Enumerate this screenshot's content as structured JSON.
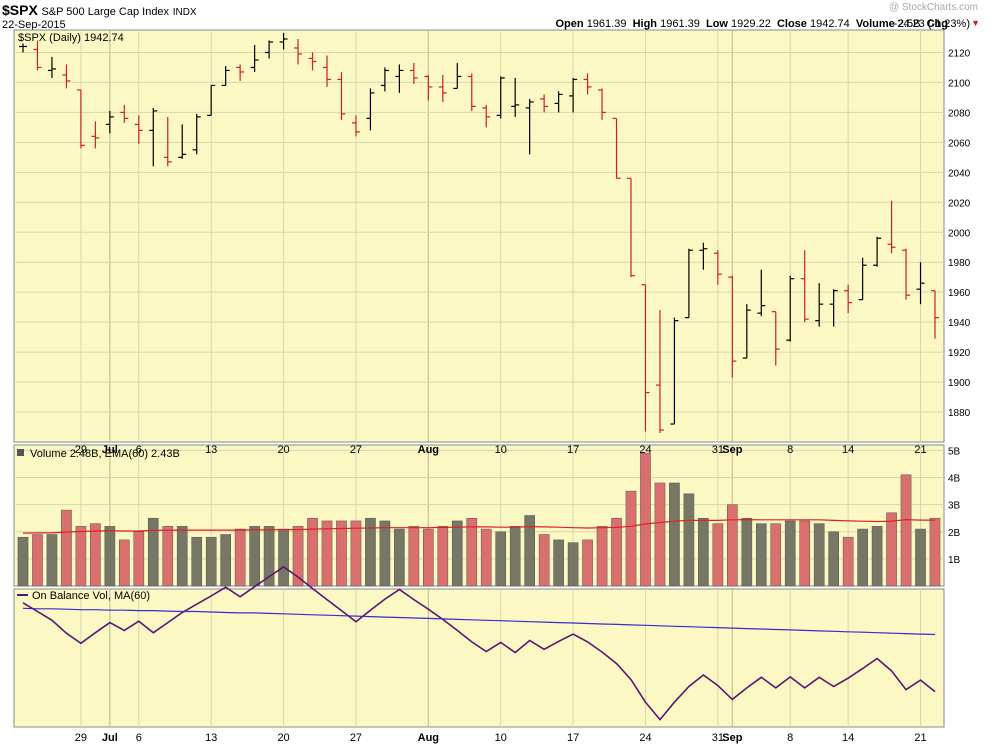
{
  "header": {
    "symbol": "$SPX",
    "name": "S&P 500 Large Cap Index",
    "exchange": "INDX",
    "date": "22-Sep-2015",
    "watermark": "@ StockCharts.com",
    "quote": {
      "open_label": "Open",
      "open": "1961.39",
      "high_label": "High",
      "high": "1961.39",
      "low_label": "Low",
      "low": "1929.22",
      "close_label": "Close",
      "close": "1942.74",
      "volume_label": "Volume",
      "volume": "2.5B",
      "chg_label": "Chg",
      "chg": "-24.23 (-1.23%)",
      "chg_arrow": "▼"
    }
  },
  "colors": {
    "panel_bg": "#fbf8c4",
    "up": "#000000",
    "down": "#cc2222",
    "vol_up": "#777766",
    "vol_down": "#d9706e",
    "ema": "#dd2222",
    "obv": "#5b1470",
    "ma": "#3a2ad0",
    "grid": "#d8d6b0",
    "watermark": "#b0b0b0"
  },
  "chart_data": [
    {
      "type": "ohlc",
      "title": "$SPX (Daily) 1942.74",
      "ylim": [
        1860,
        2135
      ],
      "yticks": [
        1880,
        1900,
        1920,
        1940,
        1960,
        1980,
        2000,
        2020,
        2040,
        2060,
        2080,
        2100,
        2120
      ],
      "xtick_labels": [
        {
          "label": "29",
          "index": 4,
          "major": false
        },
        {
          "label": "Jul",
          "index": 6,
          "major": true
        },
        {
          "label": "6",
          "index": 8,
          "major": false
        },
        {
          "label": "13",
          "index": 13,
          "major": false
        },
        {
          "label": "20",
          "index": 18,
          "major": false
        },
        {
          "label": "27",
          "index": 23,
          "major": false
        },
        {
          "label": "Aug",
          "index": 28,
          "major": true
        },
        {
          "label": "10",
          "index": 33,
          "major": false
        },
        {
          "label": "17",
          "index": 38,
          "major": false
        },
        {
          "label": "24",
          "index": 43,
          "major": false
        },
        {
          "label": "31",
          "index": 48,
          "major": false
        },
        {
          "label": "Sep",
          "index": 49,
          "major": true
        },
        {
          "label": "8",
          "index": 53,
          "major": false
        },
        {
          "label": "14",
          "index": 57,
          "major": false
        },
        {
          "label": "21",
          "index": 62,
          "major": false
        }
      ],
      "bars": [
        {
          "o": 2124,
          "h": 2126,
          "l": 2120,
          "c": 2124
        },
        {
          "o": 2122,
          "h": 2128,
          "l": 2108,
          "c": 2110
        },
        {
          "o": 2108,
          "h": 2117,
          "l": 2103,
          "c": 2109
        },
        {
          "o": 2105,
          "h": 2112,
          "l": 2096,
          "c": 2101
        },
        {
          "o": 2095,
          "h": 2095,
          "l": 2056,
          "c": 2058
        },
        {
          "o": 2064,
          "h": 2074,
          "l": 2056,
          "c": 2063
        },
        {
          "o": 2072,
          "h": 2081,
          "l": 2066,
          "c": 2077
        },
        {
          "o": 2080,
          "h": 2085,
          "l": 2073,
          "c": 2076
        },
        {
          "o": 2072,
          "h": 2078,
          "l": 2059,
          "c": 2068
        },
        {
          "o": 2068,
          "h": 2083,
          "l": 2044,
          "c": 2081
        },
        {
          "o": 2050,
          "h": 2077,
          "l": 2044,
          "c": 2047
        },
        {
          "o": 2050,
          "h": 2072,
          "l": 2049,
          "c": 2052
        },
        {
          "o": 2055,
          "h": 2079,
          "l": 2052,
          "c": 2077
        },
        {
          "o": 2078,
          "h": 2098,
          "l": 2078,
          "c": 2098
        },
        {
          "o": 2098,
          "h": 2111,
          "l": 2098,
          "c": 2108
        },
        {
          "o": 2110,
          "h": 2112,
          "l": 2101,
          "c": 2107
        },
        {
          "o": 2110,
          "h": 2125,
          "l": 2107,
          "c": 2115
        },
        {
          "o": 2120,
          "h": 2128,
          "l": 2116,
          "c": 2127
        },
        {
          "o": 2127,
          "h": 2133,
          "l": 2122,
          "c": 2129
        },
        {
          "o": 2123,
          "h": 2129,
          "l": 2112,
          "c": 2119
        },
        {
          "o": 2116,
          "h": 2120,
          "l": 2108,
          "c": 2114
        },
        {
          "o": 2110,
          "h": 2118,
          "l": 2097,
          "c": 2102
        },
        {
          "o": 2102,
          "h": 2107,
          "l": 2075,
          "c": 2079
        },
        {
          "o": 2073,
          "h": 2078,
          "l": 2064,
          "c": 2067
        },
        {
          "o": 2076,
          "h": 2096,
          "l": 2068,
          "c": 2093
        },
        {
          "o": 2098,
          "h": 2110,
          "l": 2094,
          "c": 2108
        },
        {
          "o": 2104,
          "h": 2112,
          "l": 2093,
          "c": 2108
        },
        {
          "o": 2108,
          "h": 2113,
          "l": 2099,
          "c": 2103
        },
        {
          "o": 2104,
          "h": 2105,
          "l": 2088,
          "c": 2097
        },
        {
          "o": 2097,
          "h": 2105,
          "l": 2087,
          "c": 2093
        },
        {
          "o": 2096,
          "h": 2113,
          "l": 2096,
          "c": 2104
        },
        {
          "o": 2104,
          "h": 2106,
          "l": 2081,
          "c": 2084
        },
        {
          "o": 2083,
          "h": 2085,
          "l": 2070,
          "c": 2077
        },
        {
          "o": 2078,
          "h": 2104,
          "l": 2076,
          "c": 2103
        },
        {
          "o": 2084,
          "h": 2103,
          "l": 2077,
          "c": 2085
        },
        {
          "o": 2083,
          "h": 2089,
          "l": 2052,
          "c": 2087
        },
        {
          "o": 2089,
          "h": 2092,
          "l": 2080,
          "c": 2084
        },
        {
          "o": 2086,
          "h": 2094,
          "l": 2080,
          "c": 2092
        },
        {
          "o": 2091,
          "h": 2103,
          "l": 2080,
          "c": 2102
        },
        {
          "o": 2102,
          "h": 2106,
          "l": 2092,
          "c": 2097
        },
        {
          "o": 2095,
          "h": 2096,
          "l": 2075,
          "c": 2080
        },
        {
          "o": 2076,
          "h": 2076,
          "l": 2036,
          "c": 2036
        },
        {
          "o": 2036,
          "h": 2036,
          "l": 1970,
          "c": 1971
        },
        {
          "o": 1965,
          "h": 1965,
          "l": 1867,
          "c": 1893
        },
        {
          "o": 1898,
          "h": 1948,
          "l": 1866,
          "c": 1868
        },
        {
          "o": 1872,
          "h": 1943,
          "l": 1872,
          "c": 1941
        },
        {
          "o": 1943,
          "h": 1989,
          "l": 1943,
          "c": 1988
        },
        {
          "o": 1988,
          "h": 1993,
          "l": 1975,
          "c": 1989
        },
        {
          "o": 1986,
          "h": 1988,
          "l": 1965,
          "c": 1972
        },
        {
          "o": 1970,
          "h": 1971,
          "l": 1903,
          "c": 1914
        },
        {
          "o": 1916,
          "h": 1952,
          "l": 1916,
          "c": 1948
        },
        {
          "o": 1946,
          "h": 1975,
          "l": 1944,
          "c": 1951
        },
        {
          "o": 1947,
          "h": 1947,
          "l": 1911,
          "c": 1922
        },
        {
          "o": 1928,
          "h": 1971,
          "l": 1927,
          "c": 1969
        },
        {
          "o": 1969,
          "h": 1988,
          "l": 1940,
          "c": 1942
        },
        {
          "o": 1941,
          "h": 1966,
          "l": 1937,
          "c": 1952
        },
        {
          "o": 1952,
          "h": 1962,
          "l": 1937,
          "c": 1961
        },
        {
          "o": 1961,
          "h": 1965,
          "l": 1946,
          "c": 1953
        },
        {
          "o": 1955,
          "h": 1983,
          "l": 1955,
          "c": 1978
        },
        {
          "o": 1978,
          "h": 1997,
          "l": 1977,
          "c": 1996
        },
        {
          "o": 1992,
          "h": 2021,
          "l": 1986,
          "c": 1990
        },
        {
          "o": 1988,
          "h": 1989,
          "l": 1955,
          "c": 1958
        },
        {
          "o": 1962,
          "h": 1980,
          "l": 1952,
          "c": 1966
        },
        {
          "o": 1961,
          "h": 1961,
          "l": 1929,
          "c": 1943
        }
      ]
    },
    {
      "type": "bar",
      "title": "Volume 2.48B, EMA(60) 2.43B",
      "ylim": [
        0,
        5.2
      ],
      "yticks": [
        {
          "v": 1,
          "label": "1B"
        },
        {
          "v": 2,
          "label": "2B"
        },
        {
          "v": 3,
          "label": "3B"
        },
        {
          "v": 4,
          "label": "4B"
        },
        {
          "v": 5,
          "label": "5B"
        }
      ],
      "values": [
        1.8,
        1.9,
        1.9,
        2.8,
        2.2,
        2.3,
        2.2,
        1.7,
        2.0,
        2.5,
        2.2,
        2.2,
        1.8,
        1.8,
        1.9,
        2.1,
        2.2,
        2.2,
        2.1,
        2.2,
        2.5,
        2.4,
        2.4,
        2.4,
        2.5,
        2.4,
        2.1,
        2.2,
        2.1,
        2.2,
        2.4,
        2.5,
        2.1,
        2.0,
        2.2,
        2.6,
        1.9,
        1.7,
        1.6,
        1.7,
        2.2,
        2.5,
        3.5,
        4.9,
        3.8,
        3.8,
        3.4,
        2.5,
        2.3,
        3.0,
        2.5,
        2.3,
        2.3,
        2.4,
        2.4,
        2.3,
        2.0,
        1.8,
        2.1,
        2.2,
        2.7,
        4.1,
        2.1,
        2.5
      ],
      "ema": [
        1.95,
        1.96,
        1.96,
        1.99,
        2.01,
        2.03,
        2.04,
        2.03,
        2.03,
        2.05,
        2.06,
        2.06,
        2.06,
        2.06,
        2.06,
        2.06,
        2.07,
        2.07,
        2.08,
        2.08,
        2.1,
        2.11,
        2.12,
        2.13,
        2.14,
        2.15,
        2.15,
        2.15,
        2.15,
        2.16,
        2.17,
        2.18,
        2.18,
        2.17,
        2.17,
        2.19,
        2.18,
        2.17,
        2.15,
        2.14,
        2.15,
        2.16,
        2.2,
        2.29,
        2.34,
        2.39,
        2.42,
        2.42,
        2.42,
        2.44,
        2.45,
        2.44,
        2.44,
        2.44,
        2.44,
        2.44,
        2.42,
        2.4,
        2.39,
        2.38,
        2.39,
        2.45,
        2.43,
        2.43
      ]
    },
    {
      "type": "line",
      "title": "On Balance Vol, MA(60)",
      "obv": [
        0.0,
        -1.9,
        -3.8,
        -6.6,
        -8.8,
        -6.5,
        -4.3,
        -6.0,
        -4.0,
        -6.5,
        -4.3,
        -2.1,
        -0.3,
        1.5,
        3.4,
        1.3,
        3.5,
        5.7,
        7.8,
        5.6,
        3.1,
        0.7,
        -1.7,
        -4.1,
        -1.6,
        0.8,
        2.9,
        0.7,
        -1.4,
        -3.6,
        -6.0,
        -8.5,
        -10.6,
        -8.6,
        -10.8,
        -8.2,
        -10.1,
        -8.4,
        -6.8,
        -8.5,
        -10.7,
        -13.2,
        -16.7,
        -21.6,
        -25.4,
        -21.6,
        -18.2,
        -15.7,
        -18.0,
        -21.0,
        -18.5,
        -16.2,
        -18.5,
        -16.1,
        -18.5,
        -16.2,
        -18.2,
        -16.4,
        -14.3,
        -12.1,
        -14.8,
        -18.9,
        -16.8,
        -19.3
      ],
      "ma": [
        -1.2,
        -1.3,
        -1.3,
        -1.4,
        -1.5,
        -1.5,
        -1.6,
        -1.6,
        -1.7,
        -1.7,
        -1.8,
        -1.9,
        -1.9,
        -2.0,
        -2.1,
        -2.2,
        -2.2,
        -2.3,
        -2.4,
        -2.5,
        -2.6,
        -2.7,
        -2.8,
        -2.9,
        -3.0,
        -3.1,
        -3.2,
        -3.3,
        -3.4,
        -3.5,
        -3.6,
        -3.7,
        -3.8,
        -3.9,
        -4.0,
        -4.1,
        -4.2,
        -4.3,
        -4.4,
        -4.5,
        -4.6,
        -4.7,
        -4.8,
        -4.9,
        -5.0,
        -5.1,
        -5.2,
        -5.3,
        -5.4,
        -5.5,
        -5.6,
        -5.7,
        -5.8,
        -5.9,
        -6.0,
        -6.1,
        -6.2,
        -6.3,
        -6.4,
        -6.5,
        -6.6,
        -6.7,
        -6.8,
        -6.9
      ],
      "ylim": [
        -27,
        3
      ]
    }
  ]
}
